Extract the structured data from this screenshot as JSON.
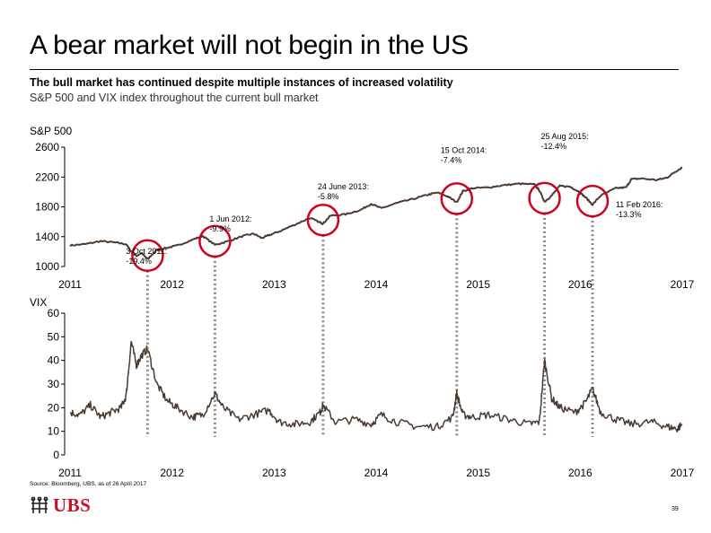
{
  "slide": {
    "title": "A bear market will not begin in the US",
    "subtitle": "The bull market has continued despite multiple instances of increased volatility",
    "subtitle2": "S&P 500 and VIX index throughout the current bull market",
    "source": "Source: Bloomberg, UBS, as of 26 April 2017",
    "logo_text": "UBS",
    "logo_icon": "ubs-keys-icon",
    "page_number": "39"
  },
  "colors": {
    "line": "#4a3a30",
    "circle": "#d0021b",
    "dotted": "#888888",
    "brand": "#c8102e"
  },
  "chart_data": [
    {
      "type": "line",
      "title": "S&P 500",
      "xlabel": "",
      "ylabel": "",
      "x_ticks": [
        "2011",
        "2012",
        "2013",
        "2014",
        "2015",
        "2016",
        "2017"
      ],
      "y_ticks": [
        "2600",
        "2200",
        "1800",
        "1400",
        "1000"
      ],
      "ylim": [
        1000,
        2600
      ],
      "xlim": [
        2011.0,
        2017.0
      ],
      "grid": false,
      "series": [
        {
          "x": [
            2011.0,
            2011.15,
            2011.3,
            2011.45,
            2011.55,
            2011.6,
            2011.65,
            2011.7,
            2011.76,
            2011.85,
            2011.95,
            2012.05,
            2012.2,
            2012.3,
            2012.42,
            2012.55,
            2012.7,
            2012.8,
            2012.88,
            2012.95,
            2013.05,
            2013.2,
            2013.35,
            2013.45,
            2013.48,
            2013.55,
            2013.7,
            2013.85,
            2013.95,
            2014.05,
            2014.2,
            2014.35,
            2014.5,
            2014.6,
            2014.7,
            2014.79,
            2014.85,
            2014.95,
            2015.1,
            2015.25,
            2015.4,
            2015.55,
            2015.6,
            2015.65,
            2015.72,
            2015.8,
            2015.9,
            2015.98,
            2016.05,
            2016.12,
            2016.2,
            2016.35,
            2016.45,
            2016.5,
            2016.6,
            2016.75,
            2016.85,
            2016.92,
            2017.0
          ],
          "y": [
            1282,
            1300,
            1340,
            1320,
            1300,
            1200,
            1140,
            1180,
            1099,
            1220,
            1250,
            1280,
            1360,
            1410,
            1290,
            1340,
            1410,
            1440,
            1380,
            1420,
            1470,
            1560,
            1650,
            1590,
            1575,
            1680,
            1700,
            1760,
            1840,
            1780,
            1850,
            1900,
            1960,
            1990,
            1940,
            1862,
            2010,
            2050,
            2060,
            2090,
            2110,
            2100,
            2020,
            1868,
            1950,
            2080,
            2070,
            2010,
            1930,
            1829,
            1950,
            2050,
            2060,
            2170,
            2180,
            2160,
            2190,
            2260,
            2330
          ]
        }
      ],
      "annotations": [
        {
          "line1": "3 Oct 2011:",
          "line2": "-19.4%",
          "x": 2011.76,
          "y": 1099
        },
        {
          "line1": "1 Jun 2012:",
          "line2": "-9.9%",
          "x": 2012.42,
          "y": 1290
        },
        {
          "line1": "24 June 2013:",
          "line2": "-5.8%",
          "x": 2013.48,
          "y": 1575
        },
        {
          "line1": "15 Oct 2014:",
          "line2": "-7.4%",
          "x": 2014.79,
          "y": 1862
        },
        {
          "line1": "25 Aug 2015:",
          "line2": "-12.4%",
          "x": 2015.65,
          "y": 1868
        },
        {
          "line1": "11 Feb 2016:",
          "line2": "-13.3%",
          "x": 2016.12,
          "y": 1829
        }
      ]
    },
    {
      "type": "line",
      "title": "VIX",
      "xlabel": "",
      "ylabel": "",
      "x_ticks": [
        "2011",
        "2012",
        "2013",
        "2014",
        "2015",
        "2016",
        "2017"
      ],
      "y_ticks": [
        "60",
        "50",
        "40",
        "30",
        "20",
        "10",
        "0"
      ],
      "ylim": [
        0,
        60
      ],
      "xlim": [
        2011.0,
        2017.0
      ],
      "grid": false,
      "series": [
        {
          "x": [
            2011.0,
            2011.1,
            2011.2,
            2011.3,
            2011.4,
            2011.5,
            2011.55,
            2011.6,
            2011.65,
            2011.7,
            2011.76,
            2011.85,
            2011.95,
            2012.05,
            2012.2,
            2012.3,
            2012.42,
            2012.5,
            2012.65,
            2012.8,
            2012.95,
            2013.05,
            2013.2,
            2013.35,
            2013.45,
            2013.48,
            2013.6,
            2013.8,
            2013.95,
            2014.05,
            2014.2,
            2014.4,
            2014.6,
            2014.75,
            2014.79,
            2014.85,
            2014.95,
            2015.1,
            2015.3,
            2015.5,
            2015.6,
            2015.65,
            2015.72,
            2015.8,
            2015.95,
            2016.05,
            2016.12,
            2016.2,
            2016.35,
            2016.5,
            2016.7,
            2016.85,
            2016.95,
            2017.0
          ],
          "y": [
            18,
            17,
            21,
            16,
            18,
            20,
            25,
            48,
            38,
            42,
            45,
            30,
            23,
            20,
            16,
            17,
            26,
            20,
            15,
            17,
            19,
            14,
            13,
            14,
            18,
            21,
            14,
            15,
            13,
            17,
            14,
            12,
            12,
            16,
            26,
            17,
            16,
            17,
            15,
            13,
            14,
            40,
            24,
            20,
            18,
            22,
            28,
            18,
            15,
            13,
            14,
            12,
            11,
            13
          ]
        }
      ]
    }
  ]
}
